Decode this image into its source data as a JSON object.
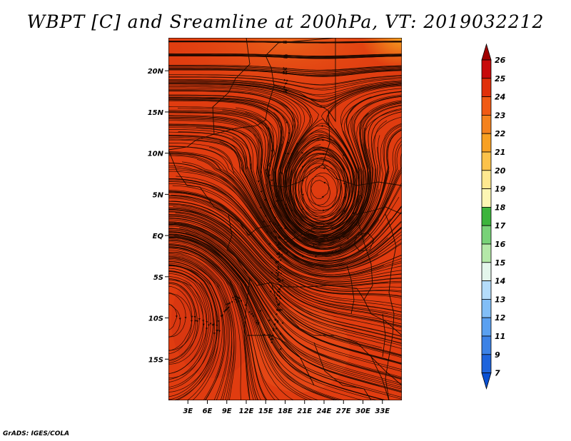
{
  "title": "WBPT [C] and Sreamline at 200hPa, VT: 2019032212",
  "credit": "GrADS: IGES/COLA",
  "map": {
    "lon_min": 0,
    "lon_max": 36,
    "lat_min": -20,
    "lat_max": 24,
    "lon_ticks": [
      {
        "v": 3,
        "label": "3E"
      },
      {
        "v": 6,
        "label": "6E"
      },
      {
        "v": 9,
        "label": "9E"
      },
      {
        "v": 12,
        "label": "12E"
      },
      {
        "v": 15,
        "label": "15E"
      },
      {
        "v": 18,
        "label": "18E"
      },
      {
        "v": 21,
        "label": "21E"
      },
      {
        "v": 24,
        "label": "24E"
      },
      {
        "v": 27,
        "label": "27E"
      },
      {
        "v": 30,
        "label": "30E"
      },
      {
        "v": 33,
        "label": "33E"
      }
    ],
    "lat_ticks": [
      {
        "v": 20,
        "label": "20N"
      },
      {
        "v": 15,
        "label": "15N"
      },
      {
        "v": 10,
        "label": "10N"
      },
      {
        "v": 5,
        "label": "5N"
      },
      {
        "v": 0,
        "label": "EQ"
      },
      {
        "v": -5,
        "label": "5S"
      },
      {
        "v": -10,
        "label": "10S"
      },
      {
        "v": -15,
        "label": "15S"
      }
    ],
    "field_colors": {
      "base": "#e03c10",
      "north": "#ec6418",
      "corner": "#f49a1c",
      "cool_south": "#d03210"
    }
  },
  "colorbar": {
    "levels": [
      "26",
      "25",
      "24",
      "23",
      "22",
      "21",
      "20",
      "19",
      "18",
      "17",
      "16",
      "15",
      "14",
      "13",
      "12",
      "11",
      "9",
      "7"
    ],
    "colors": [
      "#a00000",
      "#c80a0a",
      "#e0300a",
      "#f05a14",
      "#f4821e",
      "#f8a022",
      "#fcc24a",
      "#fee890",
      "#fcf6b4",
      "#3cb43c",
      "#78d278",
      "#b4e8a8",
      "#e4f6ec",
      "#b4dcfa",
      "#82bef6",
      "#5aa0f0",
      "#3c82e6",
      "#1e64dc",
      "#0a50d2"
    ]
  }
}
